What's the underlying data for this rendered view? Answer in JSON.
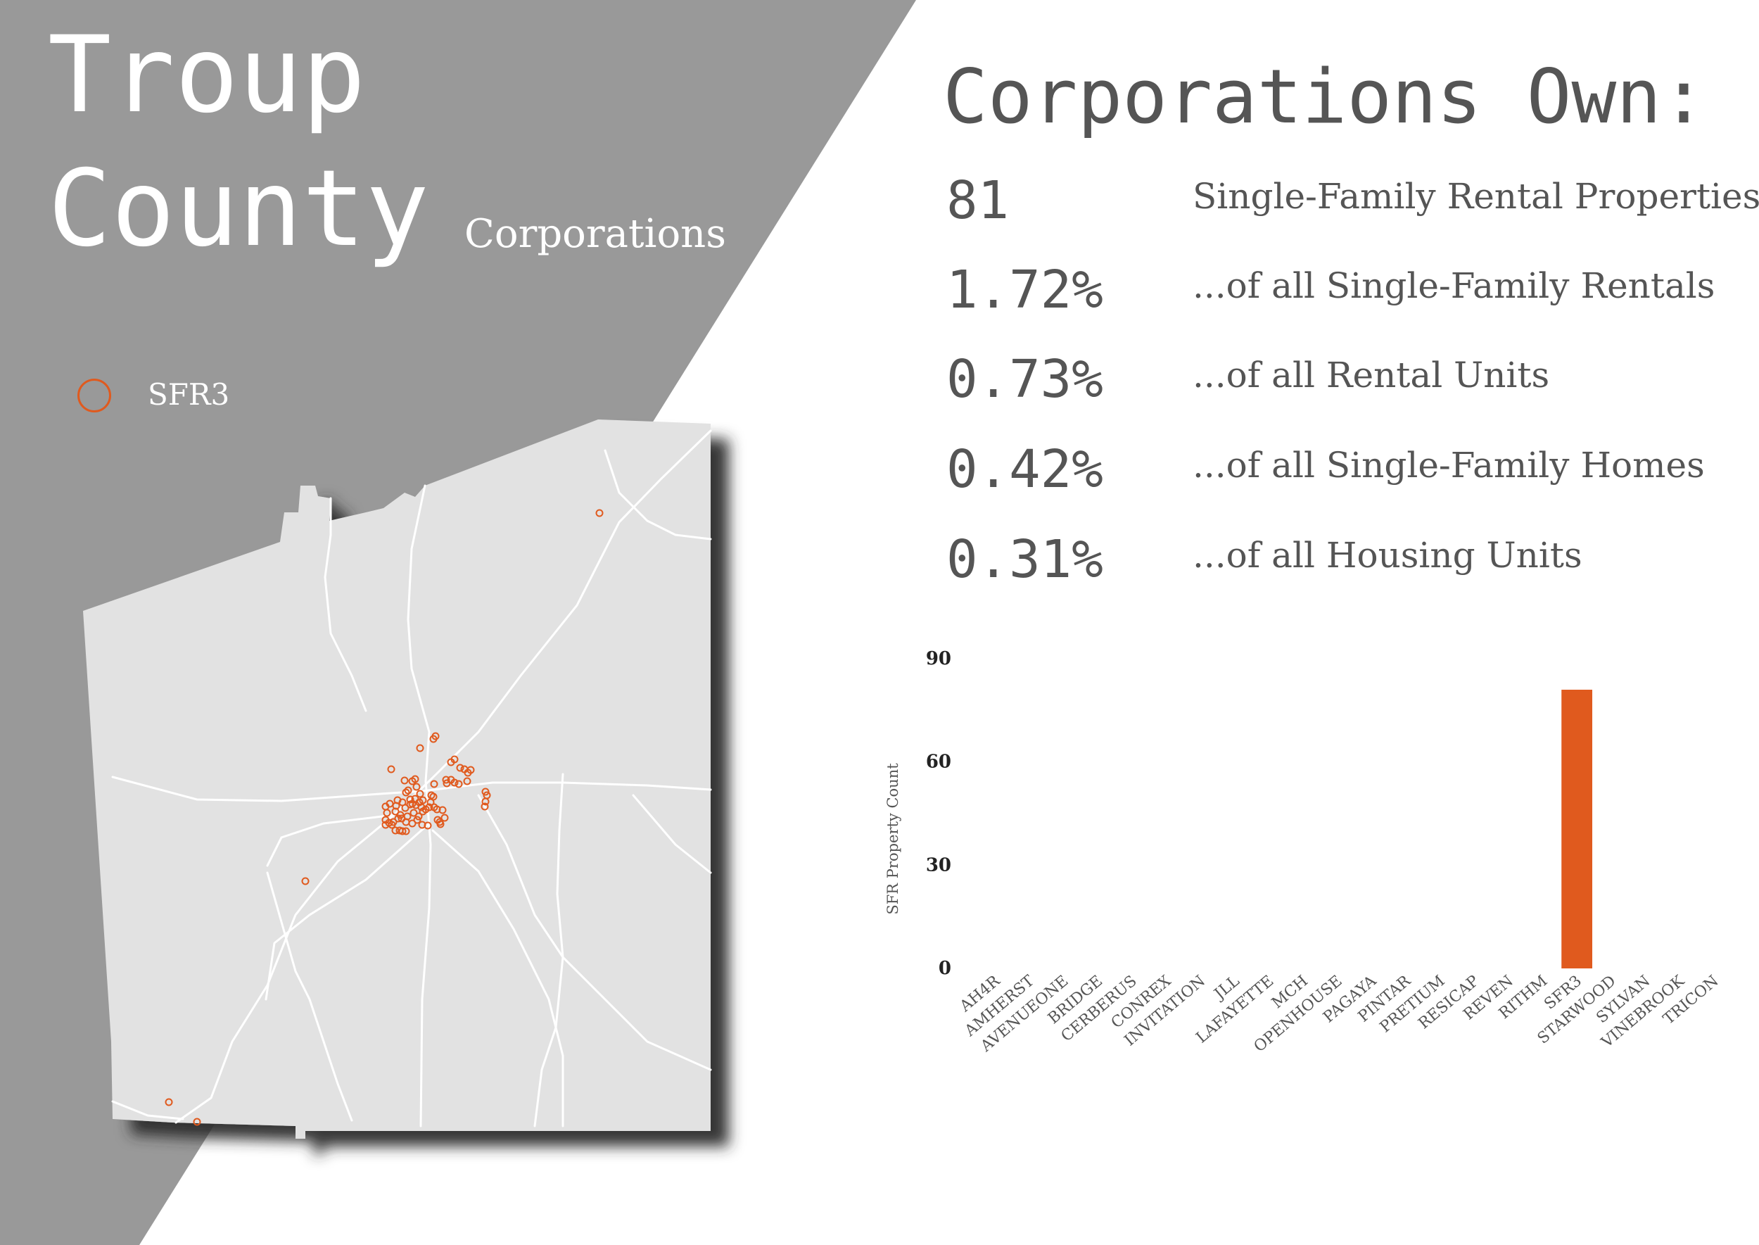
{
  "title": {
    "line1": "Troup",
    "line2": "County",
    "subtitle": "Corporations"
  },
  "legend": {
    "label": "SFR3",
    "color": "#e05a1e"
  },
  "colors": {
    "panel": "#999999",
    "map_fill": "#e2e2e2",
    "roads": "#ffffff",
    "accent": "#e05a1e",
    "text": "#555555"
  },
  "stats": {
    "heading": "Corporations Own:",
    "rows": [
      {
        "value": "81",
        "label": "Single-Family Rental Properties"
      },
      {
        "value": "1.72%",
        "label": "...of all Single-Family Rentals"
      },
      {
        "value": "0.73%",
        "label": "...of all Rental Units"
      },
      {
        "value": "0.42%",
        "label": "...of all Single-Family Homes"
      },
      {
        "value": "0.31%",
        "label": "...of all Housing Units"
      }
    ]
  },
  "chart_data": {
    "type": "bar",
    "ylabel": "SFR Property Count",
    "ylim": [
      0,
      90
    ],
    "yticks": [
      0,
      30,
      60,
      90
    ],
    "categories": [
      "AH4R",
      "AMHERST",
      "AVENUEONE",
      "BRIDGE",
      "CERBERUS",
      "CONREX",
      "INVITATION",
      "JLL",
      "LAFAYETTE",
      "MCH",
      "OPENHOUSE",
      "PAGAYA",
      "PINTAR",
      "PRETIUM",
      "RESICAP",
      "REVEN",
      "RITHM",
      "SFR3",
      "STARWOOD",
      "SYLVAN",
      "VINEBROOK",
      "TRICON"
    ],
    "values": [
      0,
      0,
      0,
      0,
      0,
      0,
      0,
      0,
      0,
      0,
      0,
      0,
      0,
      0,
      0,
      0,
      0,
      81,
      0,
      0,
      0,
      0
    ],
    "bar_color": "#e05a1e"
  }
}
